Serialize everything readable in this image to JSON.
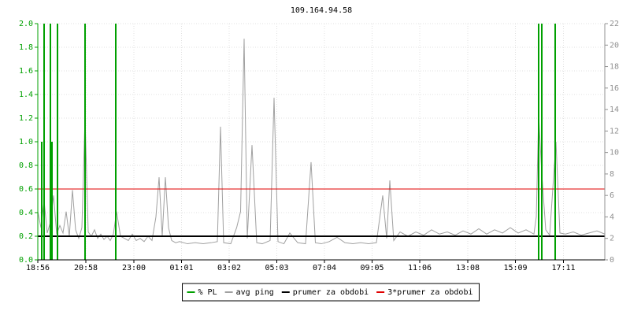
{
  "chart_data": {
    "type": "line",
    "title": "109.164.94.58",
    "xlim": [
      0,
      1440
    ],
    "xticks": [
      {
        "value": 0,
        "label": "18:56"
      },
      {
        "value": 122,
        "label": "20:58"
      },
      {
        "value": 244,
        "label": "23:00"
      },
      {
        "value": 365,
        "label": "01:01"
      },
      {
        "value": 486,
        "label": "03:02"
      },
      {
        "value": 607,
        "label": "05:03"
      },
      {
        "value": 728,
        "label": "07:04"
      },
      {
        "value": 849,
        "label": "09:05"
      },
      {
        "value": 970,
        "label": "11:06"
      },
      {
        "value": 1092,
        "label": "13:08"
      },
      {
        "value": 1213,
        "label": "15:09"
      },
      {
        "value": 1335,
        "label": "17:11"
      }
    ],
    "ylim": [
      0,
      2
    ],
    "yticks": [
      {
        "value": 0,
        "label": "0.0"
      },
      0.2,
      0.4,
      0.6,
      0.8,
      {
        "value": 1,
        "label": "1.0"
      },
      1.2,
      1.4,
      1.6,
      1.8,
      {
        "value": 2,
        "label": "2.0"
      }
    ],
    "y2lim": [
      0,
      22
    ],
    "y2ticks": [
      0,
      2,
      4,
      6,
      8,
      10,
      12,
      14,
      16,
      18,
      20,
      22
    ],
    "grid": true,
    "series": [
      {
        "name": "% PL",
        "color": "#00a000",
        "kind": "impulse",
        "x": [
          10,
          16,
          32,
          36,
          50,
          120,
          198,
          1272,
          1280,
          1314
        ],
        "values": [
          1.0,
          2.0,
          2.0,
          1.0,
          2.0,
          2.0,
          2.0,
          2.0,
          2.0,
          2.0
        ]
      },
      {
        "name": "avg ping",
        "color": "#a0a0a0",
        "kind": "line",
        "axis": "y2",
        "x": [
          0,
          8,
          16,
          24,
          32,
          40,
          48,
          56,
          64,
          72,
          80,
          88,
          96,
          104,
          112,
          120,
          128,
          136,
          144,
          152,
          160,
          168,
          176,
          184,
          192,
          200,
          210,
          220,
          230,
          240,
          250,
          260,
          270,
          280,
          290,
          300,
          308,
          316,
          324,
          332,
          340,
          350,
          360,
          380,
          400,
          420,
          440,
          456,
          464,
          472,
          490,
          505,
          515,
          524,
          532,
          544,
          556,
          570,
          590,
          600,
          610,
          625,
          640,
          660,
          680,
          694,
          705,
          720,
          740,
          760,
          780,
          800,
          820,
          840,
          860,
          876,
          886,
          894,
          904,
          920,
          940,
          960,
          980,
          1000,
          1020,
          1040,
          1060,
          1080,
          1100,
          1120,
          1140,
          1160,
          1180,
          1200,
          1220,
          1240,
          1260,
          1266,
          1272,
          1280,
          1290,
          1300,
          1316,
          1326,
          1340,
          1360,
          1380,
          1400,
          1420,
          1440
        ],
        "values": [
          4.5,
          3,
          5.5,
          2.5,
          3.5,
          6,
          2.4,
          3.2,
          2.5,
          4.5,
          2.2,
          6.5,
          2.8,
          2,
          3,
          13.4,
          2.6,
          2.2,
          2.8,
          2,
          2.4,
          1.9,
          2.2,
          1.8,
          2.4,
          4.5,
          2.2,
          2,
          1.8,
          2.4,
          1.8,
          2,
          1.7,
          2.2,
          1.8,
          4,
          7.7,
          2.2,
          7.7,
          3,
          1.8,
          1.6,
          1.7,
          1.5,
          1.6,
          1.5,
          1.6,
          1.7,
          12.4,
          1.6,
          1.5,
          3,
          4.5,
          20.6,
          2,
          10.7,
          1.6,
          1.5,
          1.8,
          15.1,
          1.7,
          1.5,
          2.5,
          1.6,
          1.5,
          9.1,
          1.6,
          1.5,
          1.7,
          2.1,
          1.6,
          1.5,
          1.6,
          1.5,
          1.6,
          6,
          2,
          7.4,
          1.8,
          2.6,
          2.2,
          2.6,
          2.3,
          2.8,
          2.4,
          2.6,
          2.3,
          2.7,
          2.4,
          2.9,
          2.4,
          2.8,
          2.5,
          3,
          2.5,
          2.8,
          2.4,
          4,
          13.5,
          8,
          2.8,
          2.3,
          11,
          2.5,
          2.4,
          2.6,
          2.3,
          2.5,
          2.7,
          2.4
        ]
      },
      {
        "name": "prumer za obdobi",
        "color": "#000000",
        "kind": "hline",
        "value": 0.2
      },
      {
        "name": "3*prumer za obdobi",
        "color": "#e00000",
        "kind": "hline",
        "value": 0.6
      }
    ]
  }
}
